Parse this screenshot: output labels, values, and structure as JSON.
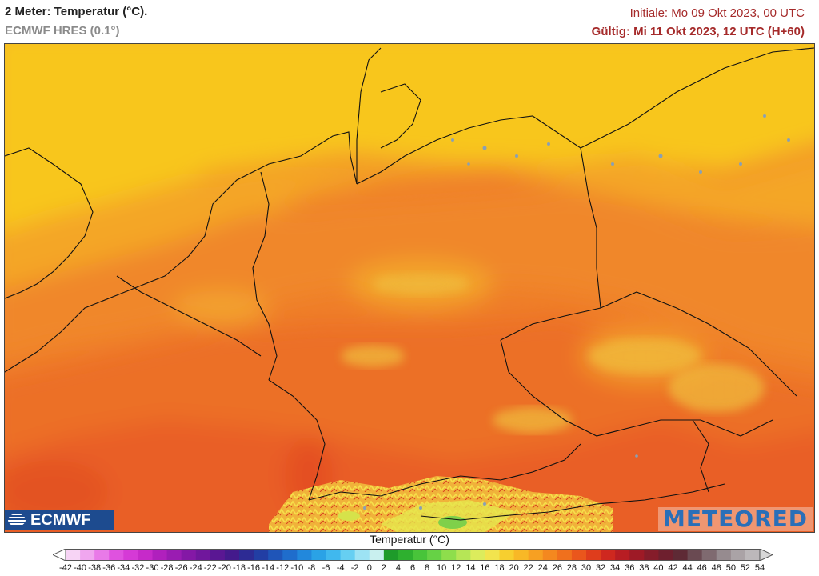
{
  "header": {
    "title": "2 Meter: Temperatur (°C).",
    "model": "ECMWF HRES (0.1°)",
    "initial": "Initiale: Mo 09 Okt 2023, 00 UTC",
    "valid": "Gültig: Mi 11 Okt 2023, 12 UTC (H+60)"
  },
  "logos": {
    "left": "ECMWF",
    "right": "METEORED"
  },
  "legend": {
    "title": "Temperatur (°C)",
    "ticks": [
      "-42",
      "-40",
      "-38",
      "-36",
      "-34",
      "-32",
      "-30",
      "-28",
      "-26",
      "-24",
      "-22",
      "-20",
      "-18",
      "-16",
      "-14",
      "-12",
      "-10",
      "-8",
      "-6",
      "-4",
      "-2",
      "0",
      "2",
      "4",
      "6",
      "8",
      "10",
      "12",
      "14",
      "16",
      "18",
      "20",
      "22",
      "24",
      "26",
      "28",
      "30",
      "32",
      "34",
      "36",
      "38",
      "40",
      "42",
      "44",
      "46",
      "48",
      "50",
      "52",
      "54"
    ],
    "colors": [
      "#f7d4f5",
      "#f0a6ef",
      "#e97ae8",
      "#df52df",
      "#d53ad6",
      "#c62ac9",
      "#b020bd",
      "#9a1cb2",
      "#8418a6",
      "#70179c",
      "#5a1793",
      "#441a8c",
      "#2d2b94",
      "#223ea4",
      "#1f55b8",
      "#1f6dcc",
      "#2288dc",
      "#2aa2e6",
      "#40b8ee",
      "#66cff2",
      "#9de3f4",
      "#c9f0ef",
      "#1e9b2a",
      "#2eb02f",
      "#48c43a",
      "#66d245",
      "#8ede4c",
      "#b6e656",
      "#dcec5c",
      "#f2e44e",
      "#f7cf2f",
      "#f8b826",
      "#f7a022",
      "#f4881f",
      "#f0701d",
      "#ea561c",
      "#df3d1c",
      "#cf281f",
      "#b81d23",
      "#9e1a26",
      "#851c2a",
      "#6e1f2e",
      "#5e2a35",
      "#6a4a52",
      "#7f6a70",
      "#968b8f",
      "#aaa3a6",
      "#bcb8ba"
    ],
    "arrow_left_color": "#ffffff",
    "arrow_right_color": "#d8d8d8"
  },
  "map": {
    "region": "Mitteleuropa",
    "dominant_colors": {
      "north_sea": "#f7c21a",
      "baltic": "#f7b51d",
      "coast": "#f5a524",
      "lowland": "#f08a2a",
      "south": "#ec6c26",
      "alps_high": "#d9e34a",
      "alps_peak": "#7fd04a"
    }
  }
}
